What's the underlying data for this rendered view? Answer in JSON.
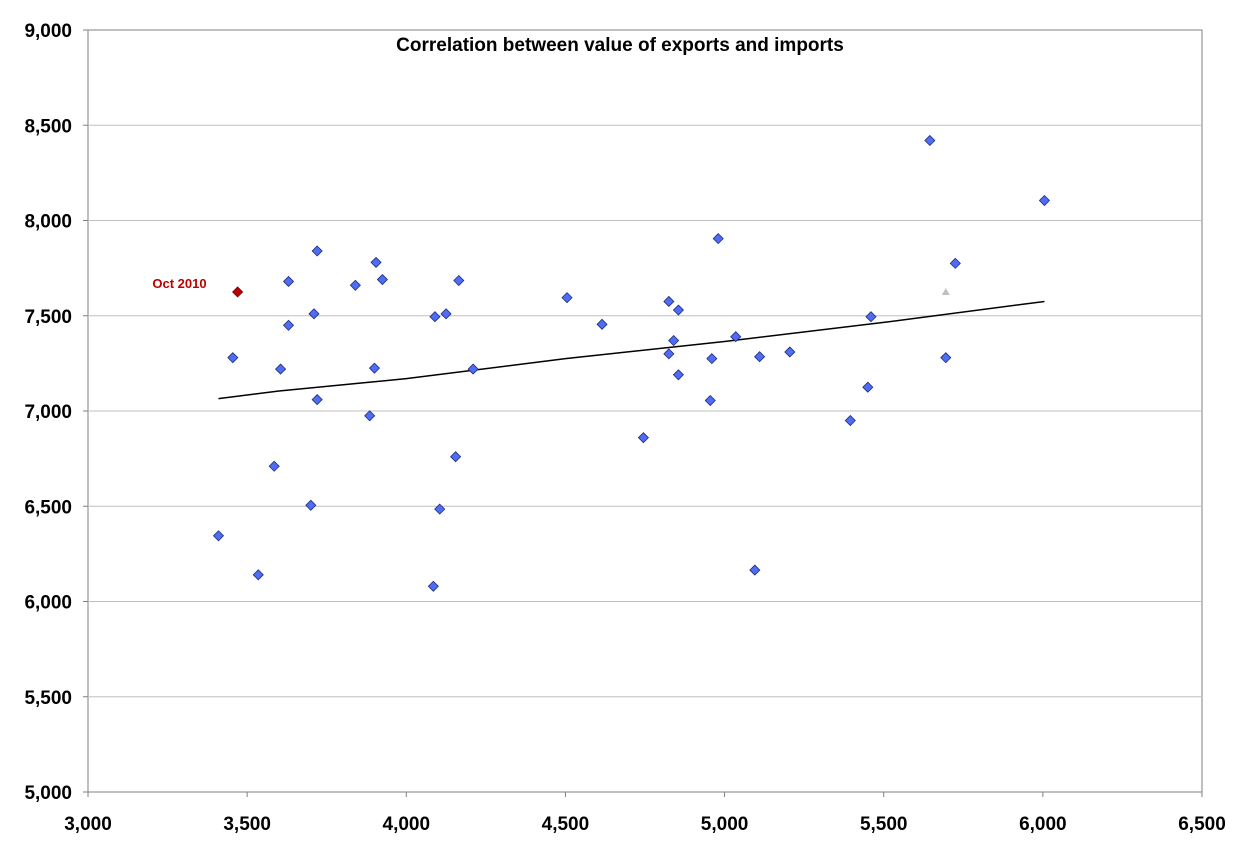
{
  "chart_data": {
    "type": "scatter",
    "title": "Correlation between value of exports and imports",
    "xlabel": "",
    "ylabel": "",
    "xlim": [
      3000,
      6500
    ],
    "ylim": [
      5000,
      9000
    ],
    "x_ticks": [
      "3,000",
      "3,500",
      "4,000",
      "4,500",
      "5,000",
      "5,500",
      "6,000",
      "6,500"
    ],
    "y_ticks": [
      "5,000",
      "5,500",
      "6,000",
      "6,500",
      "7,000",
      "7,500",
      "8,000",
      "8,500",
      "9,000"
    ],
    "grid": "horizontal",
    "points": [
      {
        "x": 3410,
        "y": 6345
      },
      {
        "x": 3455,
        "y": 7280
      },
      {
        "x": 3535,
        "y": 6140
      },
      {
        "x": 3585,
        "y": 6710
      },
      {
        "x": 3605,
        "y": 7220
      },
      {
        "x": 3630,
        "y": 7680
      },
      {
        "x": 3630,
        "y": 7450
      },
      {
        "x": 3700,
        "y": 6505
      },
      {
        "x": 3710,
        "y": 7510
      },
      {
        "x": 3720,
        "y": 7840
      },
      {
        "x": 3720,
        "y": 7060
      },
      {
        "x": 3840,
        "y": 7660
      },
      {
        "x": 3885,
        "y": 6975
      },
      {
        "x": 3900,
        "y": 7225
      },
      {
        "x": 3905,
        "y": 7780
      },
      {
        "x": 3925,
        "y": 7690
      },
      {
        "x": 4085,
        "y": 6080
      },
      {
        "x": 4090,
        "y": 7495
      },
      {
        "x": 4105,
        "y": 6485
      },
      {
        "x": 4125,
        "y": 7510
      },
      {
        "x": 4155,
        "y": 6760
      },
      {
        "x": 4165,
        "y": 7685
      },
      {
        "x": 4210,
        "y": 7220
      },
      {
        "x": 4505,
        "y": 7595
      },
      {
        "x": 4615,
        "y": 7455
      },
      {
        "x": 4745,
        "y": 6860
      },
      {
        "x": 4825,
        "y": 7575
      },
      {
        "x": 4825,
        "y": 7300
      },
      {
        "x": 4840,
        "y": 7370
      },
      {
        "x": 4855,
        "y": 7530
      },
      {
        "x": 4855,
        "y": 7190
      },
      {
        "x": 4955,
        "y": 7055
      },
      {
        "x": 4960,
        "y": 7275
      },
      {
        "x": 4980,
        "y": 7905
      },
      {
        "x": 5035,
        "y": 7390
      },
      {
        "x": 5095,
        "y": 6165
      },
      {
        "x": 5110,
        "y": 7285
      },
      {
        "x": 5205,
        "y": 7310
      },
      {
        "x": 5395,
        "y": 6950
      },
      {
        "x": 5450,
        "y": 7125
      },
      {
        "x": 5460,
        "y": 7495
      },
      {
        "x": 5645,
        "y": 8420
      },
      {
        "x": 5695,
        "y": 7280
      },
      {
        "x": 5725,
        "y": 7775
      },
      {
        "x": 6005,
        "y": 8105
      }
    ],
    "highlight_point": {
      "x": 3470,
      "y": 7625,
      "label": "Oct 2010",
      "color": "#c00000"
    },
    "grey_marker": {
      "x": 5695,
      "y": 7625,
      "color": "#c0c0c0"
    },
    "trendline": [
      {
        "x": 3410,
        "y": 7065
      },
      {
        "x": 3600,
        "y": 7105
      },
      {
        "x": 4000,
        "y": 7170
      },
      {
        "x": 4500,
        "y": 7275
      },
      {
        "x": 5000,
        "y": 7365
      },
      {
        "x": 5500,
        "y": 7465
      },
      {
        "x": 6005,
        "y": 7575
      }
    ],
    "colors": {
      "point_fill": "#4f6cf5",
      "point_stroke": "#1f2b7a",
      "trendline": "#000000",
      "grid": "#c0c0c0",
      "axis": "#808080"
    }
  }
}
